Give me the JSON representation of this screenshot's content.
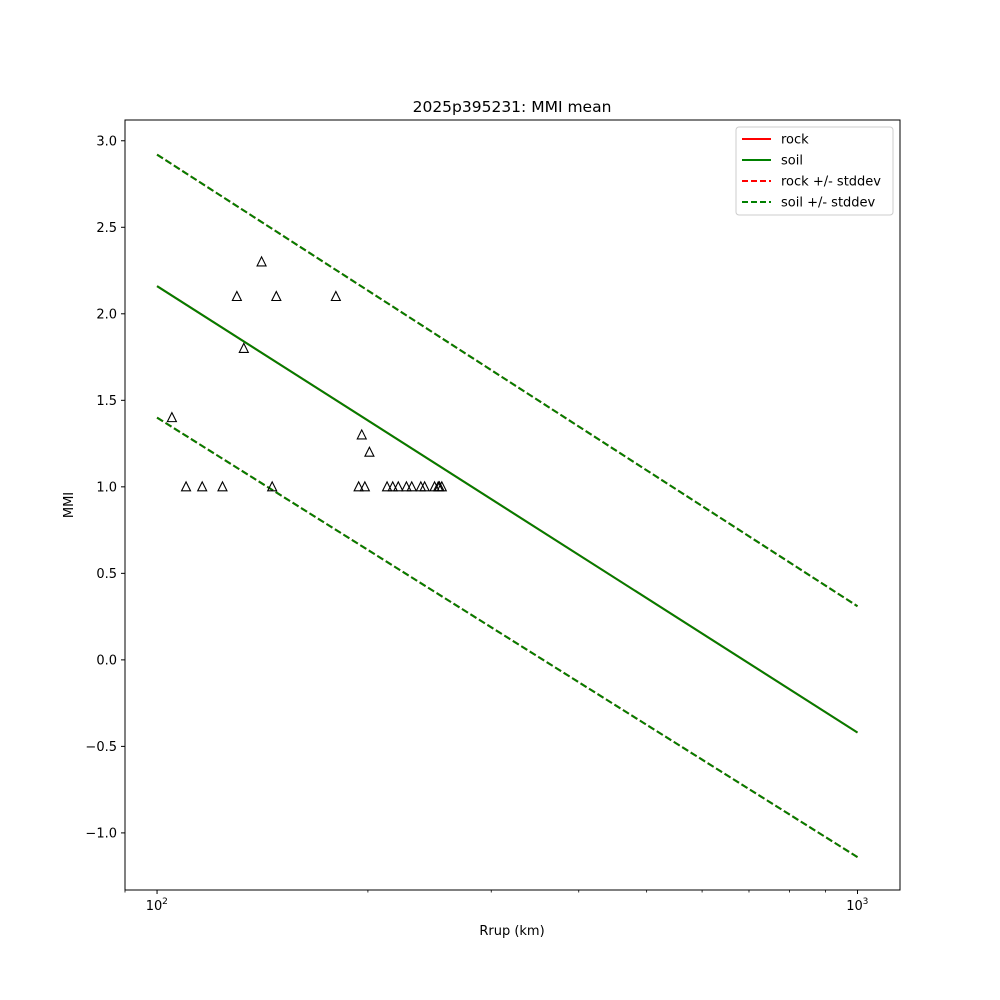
{
  "chart_data": {
    "type": "line",
    "title": "2025p395231: MMI mean",
    "xlabel": "Rrup (km)",
    "ylabel": "MMI",
    "xscale": "log",
    "xlim": [
      90,
      1150
    ],
    "ylim": [
      -1.33,
      3.12
    ],
    "yticks": [
      {
        "value": 3.0,
        "label": "3.0"
      },
      {
        "value": 2.5,
        "label": "2.5"
      },
      {
        "value": 2.0,
        "label": "2.0"
      },
      {
        "value": 1.5,
        "label": "1.5"
      },
      {
        "value": 1.0,
        "label": "1.0"
      },
      {
        "value": 0.5,
        "label": "0.5"
      },
      {
        "value": 0.0,
        "label": "0.0"
      },
      {
        "value": -0.5,
        "label": "−0.5"
      },
      {
        "value": -1.0,
        "label": "−1.0"
      }
    ],
    "xticks": [
      {
        "value": 100,
        "base": "10",
        "exp": "2"
      },
      {
        "value": 1000,
        "base": "10",
        "exp": "3"
      }
    ],
    "grid": false,
    "legend_position": "top-right",
    "series": [
      {
        "name": "rock",
        "style": "solid",
        "color": "#ff0000",
        "x": [
          100,
          1000
        ],
        "y": [
          2.16,
          -0.42
        ]
      },
      {
        "name": "soil",
        "style": "solid",
        "color": "#008000",
        "x": [
          100,
          1000
        ],
        "y": [
          2.16,
          -0.42
        ]
      },
      {
        "name": "rock +/- stddev",
        "style": "dashed",
        "color": "#ff0000",
        "x": [
          100,
          1000
        ],
        "y_upper": [
          2.92,
          0.31
        ],
        "y_lower": [
          1.4,
          -1.14
        ]
      },
      {
        "name": "soil +/- stddev",
        "style": "dashed",
        "color": "#008000",
        "x": [
          100,
          1000
        ],
        "y_upper": [
          2.92,
          0.31
        ],
        "y_lower": [
          1.4,
          -1.14
        ]
      }
    ],
    "observations": {
      "marker": "triangle",
      "x": [
        141,
        148,
        130,
        133,
        180,
        105,
        196,
        201,
        124,
        146,
        110,
        116,
        194,
        198,
        213,
        217,
        221,
        227,
        231,
        238,
        241,
        249,
        252,
        253,
        255
      ],
      "y": [
        2.3,
        2.1,
        2.1,
        1.8,
        2.1,
        1.4,
        1.3,
        1.2,
        1.0,
        1.0,
        1.0,
        1.0,
        1.0,
        1.0,
        1.0,
        1.0,
        1.0,
        1.0,
        1.0,
        1.0,
        1.0,
        1.0,
        1.0,
        1.0,
        1.0
      ]
    }
  }
}
